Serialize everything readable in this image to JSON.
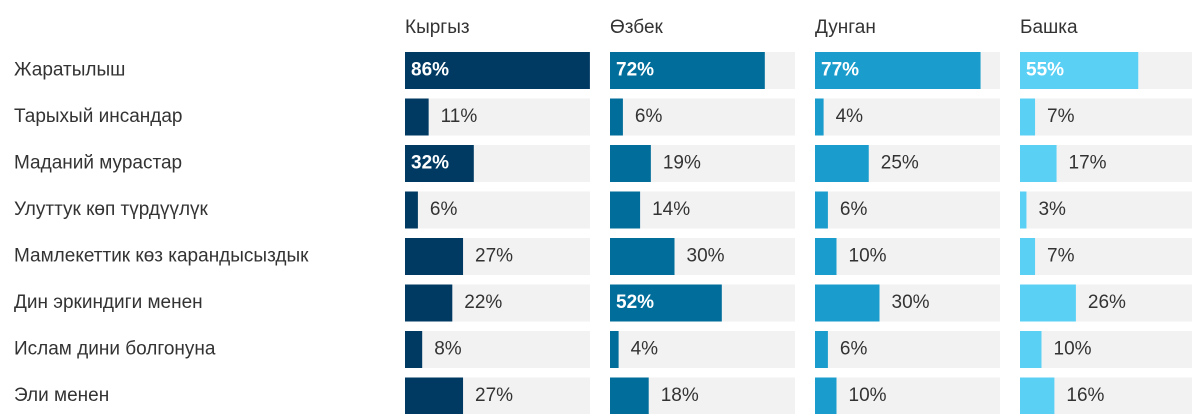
{
  "chart_data": {
    "type": "bar",
    "orientation": "horizontal",
    "categories": [
      "Жаратылыш",
      "Тарыхый инсандар",
      "Маданий мурастар",
      "Улуттук көп түрдүүлүк",
      "Мамлекеттик көз карандысыздык",
      "Дин эркиндиги менен",
      "Ислам дини болгонуна",
      "Эли менен"
    ],
    "series": [
      {
        "name": "Кыргыз",
        "color": "#003a63",
        "values": [
          86,
          11,
          32,
          6,
          27,
          22,
          8,
          27
        ],
        "value_labels": [
          "86%",
          "11%",
          "32%",
          "6%",
          "27%",
          "22%",
          "8%",
          "27%"
        ]
      },
      {
        "name": "Өзбек",
        "color": "#006d9a",
        "values": [
          72,
          6,
          19,
          14,
          30,
          52,
          4,
          18
        ],
        "value_labels": [
          "72%",
          "6%",
          "19%",
          "14%",
          "30%",
          "52%",
          "4%",
          "18%"
        ]
      },
      {
        "name": "Дунган",
        "color": "#1a9dcc",
        "values": [
          77,
          4,
          25,
          6,
          10,
          30,
          6,
          10
        ],
        "value_labels": [
          "77%",
          "4%",
          "25%",
          "6%",
          "10%",
          "30%",
          "6%",
          "10%"
        ]
      },
      {
        "name": "Башка",
        "color": "#5bd0f5",
        "values": [
          55,
          7,
          17,
          3,
          7,
          26,
          10,
          16
        ],
        "value_labels": [
          "55%",
          "7%",
          "17%",
          "3%",
          "7%",
          "26%",
          "10%",
          "16%"
        ]
      }
    ]
  }
}
